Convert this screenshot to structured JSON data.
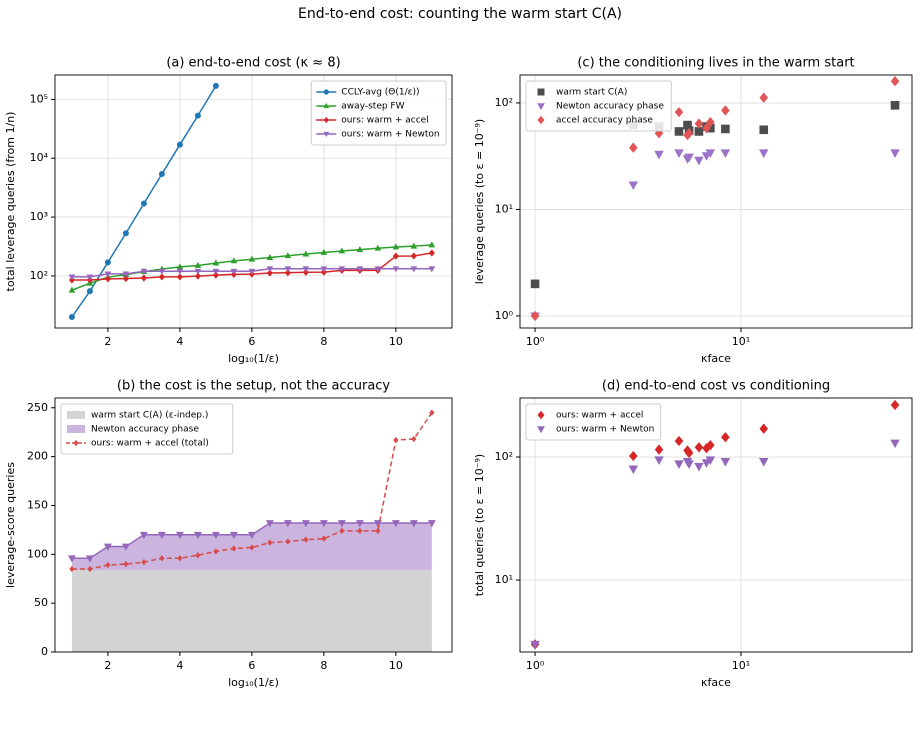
{
  "title": "End-to-end cost: counting the warm start C(A)",
  "chart_data": [
    {
      "type": "line",
      "title": "(a) end-to-end cost (κ ≈ 8)",
      "xlabel": "log₁₀(1/ε)",
      "ylabel": "total leverage queries (from 1/n)",
      "xlim": [
        0.53,
        11.56
      ],
      "ylim": [
        13,
        260000
      ],
      "ylog": true,
      "grid": true,
      "legend": "upper right",
      "xticks": [
        2,
        4,
        6,
        8,
        10
      ],
      "yticks": [
        {
          "value": 100,
          "label": "10²"
        },
        {
          "value": 1000,
          "label": "10³"
        },
        {
          "value": 10000,
          "label": "10⁴"
        },
        {
          "value": 100000,
          "label": "10⁵"
        }
      ],
      "series": [
        {
          "name": "CCLY-avg (Θ(1/ε))",
          "color": "#1f77b4",
          "marker": "o",
          "x": [
            1,
            1.5,
            2,
            2.5,
            3,
            3.5,
            4,
            4.5,
            5
          ],
          "values": [
            20,
            55,
            170,
            530,
            1700,
            5400,
            17000,
            53000,
            170000
          ]
        },
        {
          "name": "away-step FW",
          "color": "#2ca02c",
          "marker": "^",
          "x": [
            1,
            1.5,
            2,
            2.5,
            3,
            3.5,
            4,
            4.5,
            5,
            5.5,
            6,
            6.5,
            7,
            7.5,
            8,
            8.5,
            9,
            9.5,
            10,
            10.5,
            11
          ],
          "values": [
            57,
            75,
            95,
            105,
            118,
            130,
            142,
            150,
            165,
            180,
            192,
            205,
            220,
            235,
            250,
            265,
            280,
            295,
            310,
            320,
            335
          ]
        },
        {
          "name": "ours: warm + accel",
          "color": "#d62728",
          "marker": "D",
          "x": [
            1,
            1.5,
            2,
            2.5,
            3,
            3.5,
            4,
            4.5,
            5,
            5.5,
            6,
            6.5,
            7,
            7.5,
            8,
            8.5,
            9,
            9.5,
            10,
            10.5,
            11
          ],
          "values": [
            85,
            85,
            89,
            90,
            92,
            96,
            96,
            99,
            103,
            106,
            107,
            112,
            113,
            115,
            116,
            124,
            124,
            124,
            217,
            218,
            245
          ]
        },
        {
          "name": "ours: warm + Newton",
          "color": "#9467bd",
          "marker": "v",
          "x": [
            1,
            1.5,
            2,
            2.5,
            3,
            3.5,
            4,
            4.5,
            5,
            5.5,
            6,
            6.5,
            7,
            7.5,
            8,
            8.5,
            9,
            9.5,
            10,
            10.5,
            11
          ],
          "values": [
            96,
            96,
            108,
            108,
            120,
            120,
            120,
            120,
            120,
            120,
            120,
            132,
            132,
            132,
            132,
            132,
            132,
            132,
            132,
            132,
            132
          ]
        }
      ]
    },
    {
      "type": "area",
      "title": "(b) the cost is the setup, not the accuracy",
      "xlabel": "log₁₀(1/ε)",
      "ylabel": "leverage-score queries",
      "xlim": [
        0.53,
        11.56
      ],
      "ylim": [
        0,
        260
      ],
      "grid": false,
      "legend": "upper left",
      "xticks": [
        2,
        4,
        6,
        8,
        10
      ],
      "yticks": [
        0,
        50,
        100,
        150,
        200,
        250
      ],
      "x": [
        1,
        1.5,
        2,
        2.5,
        3,
        3.5,
        4,
        4.5,
        5,
        5.5,
        6,
        6.5,
        7,
        7.5,
        8,
        8.5,
        9,
        9.5,
        10,
        10.5,
        11
      ],
      "series": [
        {
          "name": "warm start C(A) (ε-indep.)",
          "kind": "area",
          "color": "#d3d3d3",
          "values": [
            84,
            84,
            84,
            84,
            84,
            84,
            84,
            84,
            84,
            84,
            84,
            84,
            84,
            84,
            84,
            84,
            84,
            84,
            84,
            84,
            84
          ]
        },
        {
          "name": "Newton accuracy phase",
          "kind": "area",
          "color": "#cbb5df",
          "edge_color": "#9467bd",
          "marker": "v",
          "values": [
            12,
            12,
            24,
            24,
            36,
            36,
            36,
            36,
            36,
            36,
            36,
            48,
            48,
            48,
            48,
            48,
            48,
            48,
            48,
            48,
            48
          ]
        },
        {
          "name": "ours: warm + accel (total)",
          "kind": "line",
          "color": "#d94a4a",
          "marker": "D",
          "dashed": true,
          "values": [
            85,
            85,
            89,
            90,
            92,
            96,
            96,
            99,
            103,
            106,
            107,
            112,
            113,
            115,
            116,
            124,
            124,
            124,
            217,
            218,
            245
          ]
        }
      ]
    },
    {
      "type": "scatter",
      "title": "(c) the conditioning lives in the warm start",
      "xlabel": "κface",
      "ylabel": "leverage queries (to ε = 10⁻⁹)",
      "xlim": [
        0.845,
        67.7
      ],
      "ylim": [
        0.77,
        183
      ],
      "xlog": true,
      "ylog": true,
      "grid": true,
      "legend": "upper left",
      "xticks": [
        {
          "value": 1,
          "label": "10⁰"
        },
        {
          "value": 10,
          "label": "10¹"
        }
      ],
      "yticks": [
        {
          "value": 1,
          "label": "10⁰"
        },
        {
          "value": 10,
          "label": "10¹"
        },
        {
          "value": 100,
          "label": "10²"
        }
      ],
      "series": [
        {
          "name": "warm start C(A)",
          "color": "#4d4d4d",
          "marker": "s",
          "x": [
            1,
            3,
            4,
            5,
            5.5,
            5.6,
            6.25,
            6.8,
            7.1,
            8.4,
            12.9,
            56
          ],
          "values": [
            2,
            62,
            60,
            54,
            62,
            55,
            54,
            60,
            58,
            57,
            56,
            95
          ]
        },
        {
          "name": "Newton accuracy phase",
          "color": "#9b72c8",
          "marker": "v",
          "x": [
            1,
            3,
            4,
            5,
            5.5,
            5.6,
            6.25,
            6.8,
            7.1,
            8.4,
            12.9,
            56
          ],
          "values": [
            1,
            17,
            33,
            34,
            30,
            31,
            29,
            32,
            34,
            34,
            34,
            34
          ]
        },
        {
          "name": "accel accuracy phase",
          "color": "#e05555",
          "marker": "D",
          "x": [
            1,
            3,
            4,
            5,
            5.5,
            5.6,
            6.25,
            6.8,
            7.1,
            8.4,
            12.9,
            56
          ],
          "values": [
            1,
            38,
            52,
            82,
            50,
            52,
            64,
            58,
            66,
            85,
            112,
            160
          ]
        }
      ]
    },
    {
      "type": "scatter",
      "title": "(d) end-to-end cost vs conditioning",
      "xlabel": "κface",
      "ylabel": "total queries (to ε = 10⁻⁹)",
      "xlim": [
        0.845,
        67.7
      ],
      "ylim": [
        2.6,
        302
      ],
      "xlog": true,
      "ylog": true,
      "grid": true,
      "legend": "upper left",
      "xticks": [
        {
          "value": 1,
          "label": "10⁰"
        },
        {
          "value": 10,
          "label": "10¹"
        }
      ],
      "yticks": [
        {
          "value": 10,
          "label": "10¹"
        },
        {
          "value": 100,
          "label": "10²"
        }
      ],
      "series": [
        {
          "name": "ours: warm + accel",
          "color": "#d62728",
          "marker": "D",
          "x": [
            1,
            3,
            4,
            5,
            5.5,
            5.6,
            6.25,
            6.8,
            7.1,
            8.4,
            12.9,
            56
          ],
          "values": [
            3,
            102,
            115,
            135,
            113,
            108,
            120,
            118,
            125,
            145,
            170,
            265
          ]
        },
        {
          "name": "ours: warm + Newton",
          "color": "#9467bd",
          "marker": "v",
          "x": [
            1,
            3,
            4,
            5,
            5.5,
            5.6,
            6.25,
            6.8,
            7.1,
            8.4,
            12.9,
            56
          ],
          "values": [
            3,
            80,
            95,
            88,
            92,
            88,
            84,
            90,
            95,
            92,
            92,
            130
          ]
        }
      ]
    }
  ]
}
